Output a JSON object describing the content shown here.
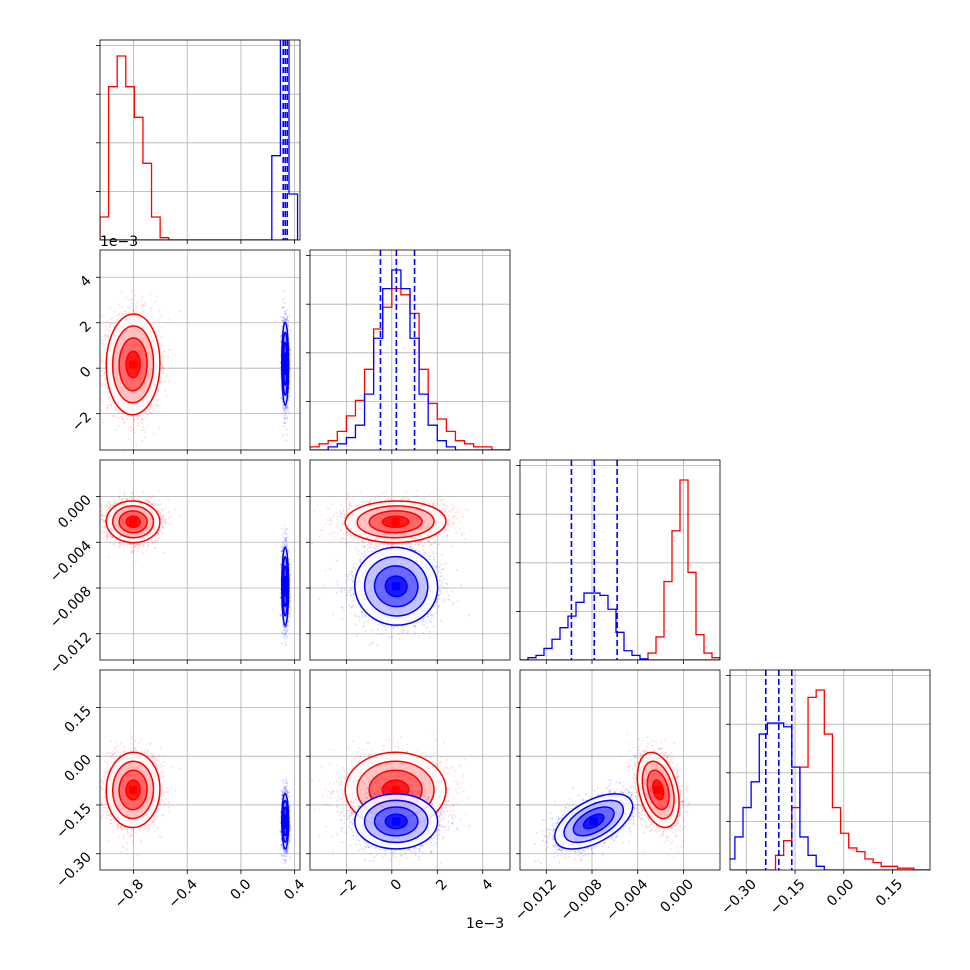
{
  "chart_data": {
    "type": "corner",
    "ndim": 4,
    "colors": {
      "red": "#ff0000",
      "blue": "#0000ff",
      "grid": "#b0b0b0",
      "axes": "#000000"
    },
    "series": [
      {
        "name": "",
        "color": "red",
        "params": [
          {
            "mean": -0.8,
            "sd": 0.095
          },
          {
            "mean": 0.0002,
            "sd": 0.00105
          },
          {
            "mean": -0.0022,
            "sd": 0.00085
          },
          {
            "mean": -0.105,
            "sd": 0.055
          }
        ]
      },
      {
        "name": "",
        "color": "blue",
        "params": [
          {
            "mean": 0.33,
            "sd": 0.012
          },
          {
            "mean": 0.0002,
            "sd": 0.00085
          },
          {
            "mean": -0.0078,
            "sd": 0.0016
          },
          {
            "mean": -0.2,
            "sd": 0.04
          }
        ]
      }
    ],
    "quantile_lines": {
      "color": "blue",
      "values": [
        [
          0.315,
          0.33,
          0.345
        ],
        [
          -0.0005,
          0.0002,
          0.001
        ],
        [
          -0.0098,
          -0.0078,
          -0.0058
        ],
        [
          -0.24,
          -0.2,
          -0.16
        ]
      ]
    },
    "histograms": [
      {
        "param": 0,
        "edges": [
          -1.05,
          -0.986,
          -0.922,
          -0.858,
          -0.794,
          -0.73,
          -0.666,
          -0.602,
          -0.538,
          -0.474,
          -0.41,
          -0.346,
          -0.282,
          -0.218,
          -0.154,
          -0.09,
          -0.026,
          0.038,
          0.102,
          0.166,
          0.23,
          0.294,
          0.358,
          0.422
        ],
        "red": [
          3,
          20,
          24,
          20,
          16,
          10,
          3,
          0.3,
          0,
          0,
          0,
          0,
          0,
          0,
          0,
          0,
          0,
          0,
          0,
          0,
          0,
          0,
          0
        ],
        "blue": [
          0,
          0,
          0,
          0,
          0,
          0,
          0,
          0,
          0,
          0,
          0,
          0,
          0,
          0,
          0,
          0,
          0,
          0,
          0,
          0,
          11,
          200,
          6
        ]
      },
      {
        "param": 1,
        "edges": [
          -0.004,
          -0.0036,
          -0.0032,
          -0.0028,
          -0.0024,
          -0.002,
          -0.0016,
          -0.0012,
          -0.0008,
          -0.0004,
          0,
          0.0004,
          0.0008,
          0.0012,
          0.0016,
          0.002,
          0.0024,
          0.0028,
          0.0032,
          0.0036,
          0.004,
          0.0044,
          0.0048,
          0.0052
        ],
        "red": [
          0,
          1,
          2,
          3,
          6,
          11,
          16,
          26,
          39,
          46,
          52,
          50,
          44,
          26,
          15,
          10,
          6,
          3,
          2,
          1,
          1,
          0,
          0
        ],
        "blue": [
          0,
          0,
          0,
          1,
          2,
          4,
          8,
          18,
          36,
          52,
          58,
          52,
          36,
          18,
          8,
          3,
          1,
          0,
          0,
          0,
          0,
          0,
          0
        ]
      },
      {
        "param": 2,
        "edges": [
          -0.0143,
          -0.0136,
          -0.0129,
          -0.0122,
          -0.0115,
          -0.0108,
          -0.0101,
          -0.0094,
          -0.0087,
          -0.008,
          -0.0073,
          -0.0066,
          -0.0059,
          -0.0052,
          -0.0045,
          -0.0038,
          -0.0031,
          -0.0024,
          -0.0017,
          -0.001,
          -0.0003,
          0.0004,
          0.0011,
          0.0018,
          0.0025,
          0.0032
        ],
        "red": [
          0,
          0,
          0,
          0,
          0,
          0,
          0,
          0,
          0,
          0,
          0,
          0,
          0,
          0,
          0,
          0.3,
          3,
          10,
          34,
          56,
          78,
          38,
          11,
          3,
          1
        ],
        "blue": [
          0,
          1,
          2,
          5,
          9,
          14,
          19,
          25,
          29,
          29,
          28,
          22,
          12,
          4,
          2,
          0.5,
          0,
          0,
          0,
          0,
          0,
          0,
          0,
          0,
          0
        ]
      },
      {
        "param": 3,
        "edges": [
          -0.41,
          -0.385,
          -0.36,
          -0.335,
          -0.31,
          -0.285,
          -0.26,
          -0.235,
          -0.21,
          -0.185,
          -0.16,
          -0.135,
          -0.11,
          -0.085,
          -0.06,
          -0.035,
          -0.01,
          0.015,
          0.04,
          0.065,
          0.09,
          0.115,
          0.14,
          0.165,
          0.19,
          0.215,
          0.24,
          0.265
        ],
        "red": [
          0,
          0,
          0,
          0,
          0,
          0,
          0,
          0,
          4,
          8,
          17,
          28,
          47,
          49,
          37,
          17,
          10,
          6,
          5,
          3,
          2,
          1,
          1,
          0.5,
          0.5,
          0,
          0
        ],
        "blue": [
          0,
          1,
          3,
          9,
          17,
          24,
          37,
          40,
          40,
          39,
          28,
          9,
          4,
          1,
          0,
          0,
          0,
          0,
          0,
          0,
          0,
          0,
          0,
          0,
          0,
          0,
          0
        ]
      }
    ],
    "axes": [
      {
        "lim": [
          -1.05,
          0.44
        ],
        "ticks": [
          -0.8,
          -0.4,
          0.0,
          0.4
        ],
        "tick_labels": [
          "−0.8",
          "−0.4",
          "0.0",
          "0.4"
        ],
        "offset": ""
      },
      {
        "lim": [
          -0.0036,
          0.0052
        ],
        "ticks": [
          -0.002,
          0.0,
          0.002,
          0.004
        ],
        "tick_labels": [
          "−2",
          "0",
          "2",
          "4"
        ],
        "offset": "1e−3"
      },
      {
        "lim": [
          -0.0143,
          0.0032
        ],
        "ticks": [
          -0.012,
          -0.008,
          -0.004,
          0.0
        ],
        "tick_labels": [
          "−0.012",
          "−0.008",
          "−0.004",
          "0.000"
        ],
        "offset": ""
      },
      {
        "lim": [
          -0.35,
          0.265
        ],
        "ticks": [
          -0.3,
          -0.15,
          0.0,
          0.15
        ],
        "tick_labels": [
          "−0.30",
          "−0.15",
          "0.00",
          "0.15"
        ],
        "offset": ""
      }
    ]
  }
}
